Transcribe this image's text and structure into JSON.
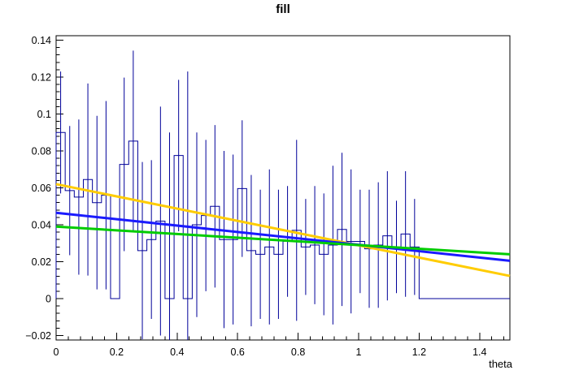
{
  "chart_data": {
    "type": "bar",
    "title": "fill",
    "xlabel": "theta",
    "ylabel": "",
    "grid": false,
    "legend": null,
    "background": "#ffffff",
    "frame_color": "#000000",
    "x_range": [
      0,
      1.5
    ],
    "y_range": [
      -0.0224,
      0.1424
    ],
    "x_major_ticks": [
      0,
      0.2,
      0.4,
      0.6,
      0.8,
      1,
      1.2,
      1.4
    ],
    "x_tick_labels": [
      "0",
      "0.2",
      "0.4",
      "0.6",
      "0.8",
      "1",
      "1.2",
      "1.4"
    ],
    "x_minor_step": 0.04,
    "y_major_ticks": [
      -0.02,
      0,
      0.02,
      0.04,
      0.06,
      0.08,
      0.1,
      0.12,
      0.14
    ],
    "y_tick_labels": [
      "−0.02",
      "0",
      "0.02",
      "0.04",
      "0.06",
      "0.08",
      "0.1",
      "0.12",
      "0.14"
    ],
    "y_minor_step": 0.004,
    "histogram": {
      "name": "fill",
      "color": "#000099",
      "bin_start": 0,
      "bin_width": 0.03,
      "n_bins": 50,
      "values": [
        0.09,
        0.0585,
        0.055,
        0.0645,
        0.052,
        0.056,
        0,
        0.0727,
        0.0853,
        0.026,
        0.032,
        0.042,
        0,
        0.0775,
        0,
        0.04,
        0.045,
        0.05,
        0.032,
        0.032,
        0.0596,
        0.026,
        0.024,
        0.028,
        0.024,
        0.031,
        0.037,
        0.028,
        0.029,
        0.024,
        0.029,
        0.0375,
        0.031,
        0.031,
        0.027,
        0.029,
        0.034,
        0.028,
        0.035,
        0.028,
        0,
        0,
        0,
        0,
        0,
        0,
        0,
        0,
        0,
        0
      ],
      "errors": [
        0.033,
        0.035,
        0.042,
        0.052,
        0.047,
        0.051,
        0,
        0.047,
        0.049,
        0.048,
        0.043,
        0.062,
        0.09,
        0.041,
        0.123,
        0.05,
        0.041,
        0.044,
        0.048,
        0.046,
        0.037,
        0.041,
        0.035,
        0.042,
        0.035,
        0.03,
        0.049,
        0.026,
        0.032,
        0.033,
        0.043,
        0.0415,
        0.039,
        0.028,
        0.032,
        0.034,
        0.035,
        0.025,
        0.034,
        0.026,
        0,
        0,
        0,
        0,
        0,
        0,
        0,
        0,
        0,
        0
      ]
    },
    "fit_lines": [
      {
        "name": "fit-line-yellow",
        "color": "#ffcc00",
        "x": [
          0,
          1.5
        ],
        "y": [
          0.062,
          0.0123
        ]
      },
      {
        "name": "fit-line-blue",
        "color": "#1a1aff",
        "x": [
          0,
          1.5
        ],
        "y": [
          0.0465,
          0.0205
        ]
      },
      {
        "name": "fit-line-green",
        "color": "#00cc00",
        "x": [
          0,
          1.5
        ],
        "y": [
          0.039,
          0.024
        ]
      }
    ]
  }
}
